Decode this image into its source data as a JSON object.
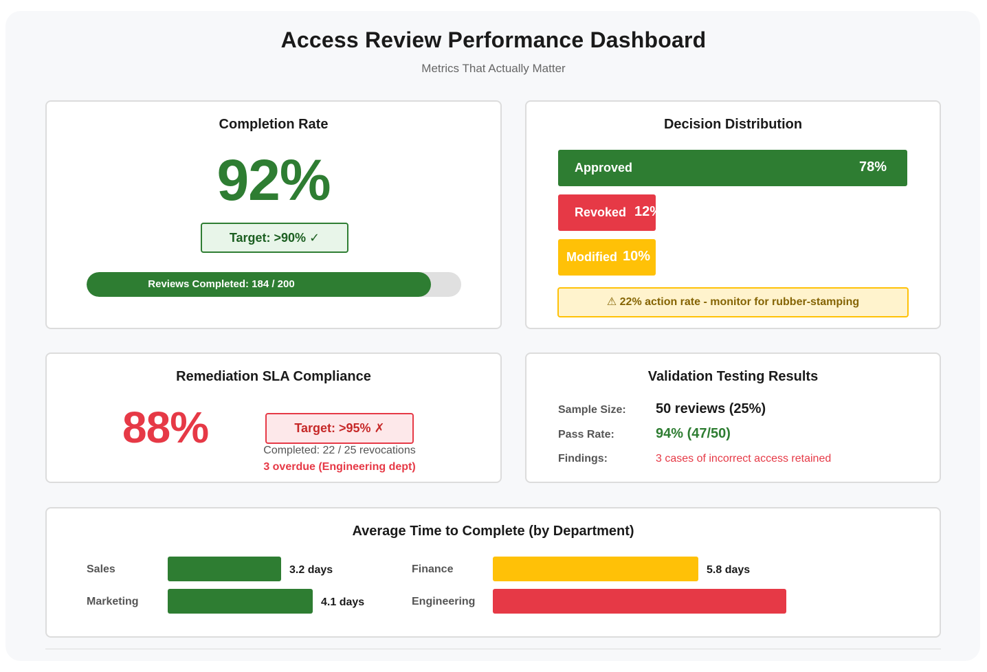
{
  "header": {
    "title": "Access Review Performance Dashboard",
    "subtitle": "Metrics That Actually Matter"
  },
  "completion": {
    "title": "Completion Rate",
    "value": "92%",
    "target": "Target: >90% ✓",
    "progress_label": "Reviews Completed: 184 / 200",
    "progress_fraction": 0.92,
    "color": "#2e7d32"
  },
  "decision": {
    "title": "Decision Distribution",
    "bars": [
      {
        "label": "Approved",
        "pct": "78%",
        "value": 78,
        "color": "#2e7d32"
      },
      {
        "label": "Revoked",
        "pct": "12%",
        "value": 12,
        "color": "#e63946"
      },
      {
        "label": "Modified",
        "pct": "10%",
        "value": 10,
        "color": "#ffc107"
      }
    ],
    "warning": "⚠ 22% action rate - monitor for rubber-stamping"
  },
  "remediation": {
    "title": "Remediation SLA Compliance",
    "value": "88%",
    "target": "Target: >95% ✗",
    "completed": "Completed: 22 / 25 revocations",
    "overdue": "3 overdue (Engineering dept)",
    "color": "#e63946"
  },
  "validation": {
    "title": "Validation Testing Results",
    "sample_label": "Sample Size:",
    "sample_value": "50 reviews (25%)",
    "pass_label": "Pass Rate:",
    "pass_value": "94% (47/50)",
    "findings_label": "Findings:",
    "findings_value": "3 cases of incorrect access retained"
  },
  "avg_time": {
    "title": "Average Time to Complete (by Department)",
    "departments": [
      {
        "name": "Sales",
        "value_label": "3.2 days",
        "days": 3.2,
        "color": "#2e7d32"
      },
      {
        "name": "Marketing",
        "value_label": "4.1 days",
        "days": 4.1,
        "color": "#2e7d32"
      },
      {
        "name": "Finance",
        "value_label": "5.8 days",
        "days": 5.8,
        "color": "#ffc107"
      },
      {
        "name": "Engineering",
        "value_label": "",
        "days": 8.3,
        "color": "#e63946"
      }
    ]
  }
}
